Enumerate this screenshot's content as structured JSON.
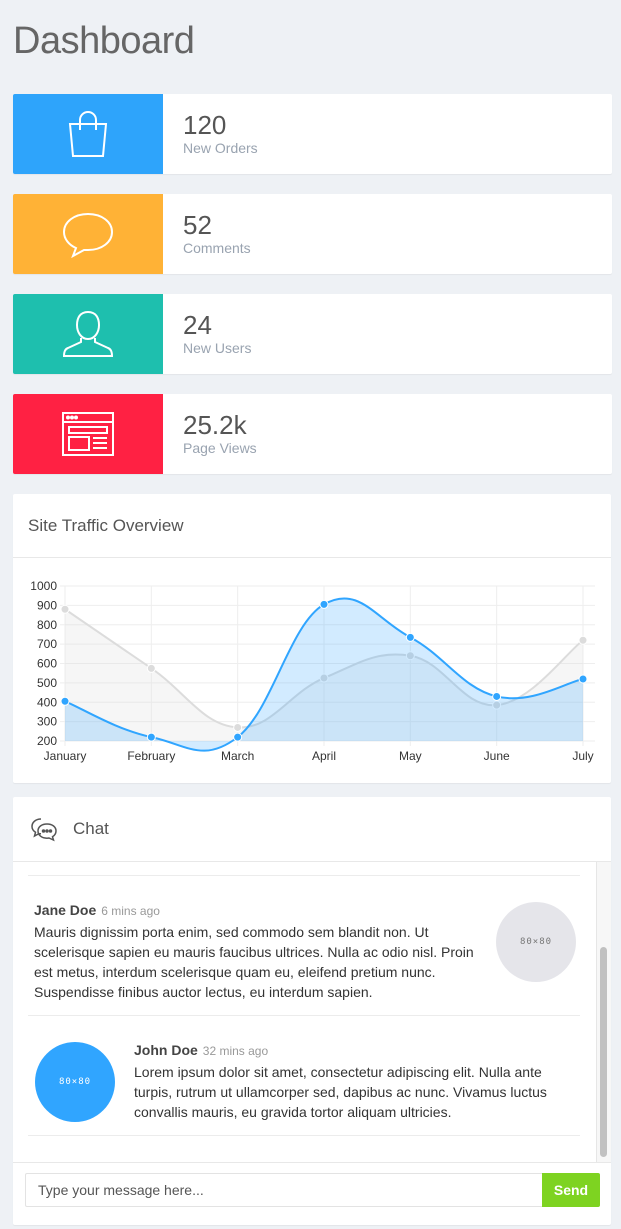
{
  "page": {
    "title": "Dashboard"
  },
  "stats": [
    {
      "value": "120",
      "label": "New Orders",
      "color": "#2ea4fb",
      "icon": "shopping-bag-icon"
    },
    {
      "value": "52",
      "label": "Comments",
      "color": "#ffb236",
      "icon": "speech-bubble-icon"
    },
    {
      "value": "24",
      "label": "New Users",
      "color": "#1ebfae",
      "icon": "user-icon"
    },
    {
      "value": "25.2k",
      "label": "Page Views",
      "color": "#ff2143",
      "icon": "browser-window-icon"
    }
  ],
  "traffic": {
    "title": "Site Traffic Overview",
    "chart_data": {
      "type": "line",
      "categories": [
        "January",
        "February",
        "March",
        "April",
        "May",
        "June",
        "July"
      ],
      "ylim": [
        200,
        1000
      ],
      "yticks": [
        200,
        300,
        400,
        500,
        600,
        700,
        800,
        900,
        1000
      ],
      "series": [
        {
          "values": [
            880,
            575,
            270,
            525,
            640,
            385,
            720
          ],
          "color": "#dcdcdc"
        },
        {
          "values": [
            405,
            220,
            220,
            905,
            735,
            430,
            520
          ],
          "color": "#30a5ff"
        }
      ],
      "grid": true
    }
  },
  "chat": {
    "title": "Chat",
    "icon": "chat-bubbles-icon",
    "messages": [
      {
        "name": "Jane Doe",
        "time": "6 mins ago",
        "text": "Mauris dignissim porta enim, sed commodo sem blandit non. Ut scelerisque sapien eu mauris faucibus ultrices. Nulla ac odio nisl. Proin est metus, interdum scelerisque quam eu, eleifend pretium nunc. Suspendisse finibus auctor lectus, eu interdum sapien.",
        "avatar_text": "80×80",
        "avatar_color": "#e5e5ea"
      },
      {
        "name": "John Doe",
        "time": "32 mins ago",
        "text": "Lorem ipsum dolor sit amet, consectetur adipiscing elit. Nulla ante turpis, rutrum ut ullamcorper sed, dapibus ac nunc. Vivamus luctus convallis mauris, eu gravida tortor aliquam ultricies.",
        "avatar_text": "80×80",
        "avatar_color": "#30a5ff"
      }
    ],
    "input_placeholder": "Type your message here...",
    "send_label": "Send"
  }
}
